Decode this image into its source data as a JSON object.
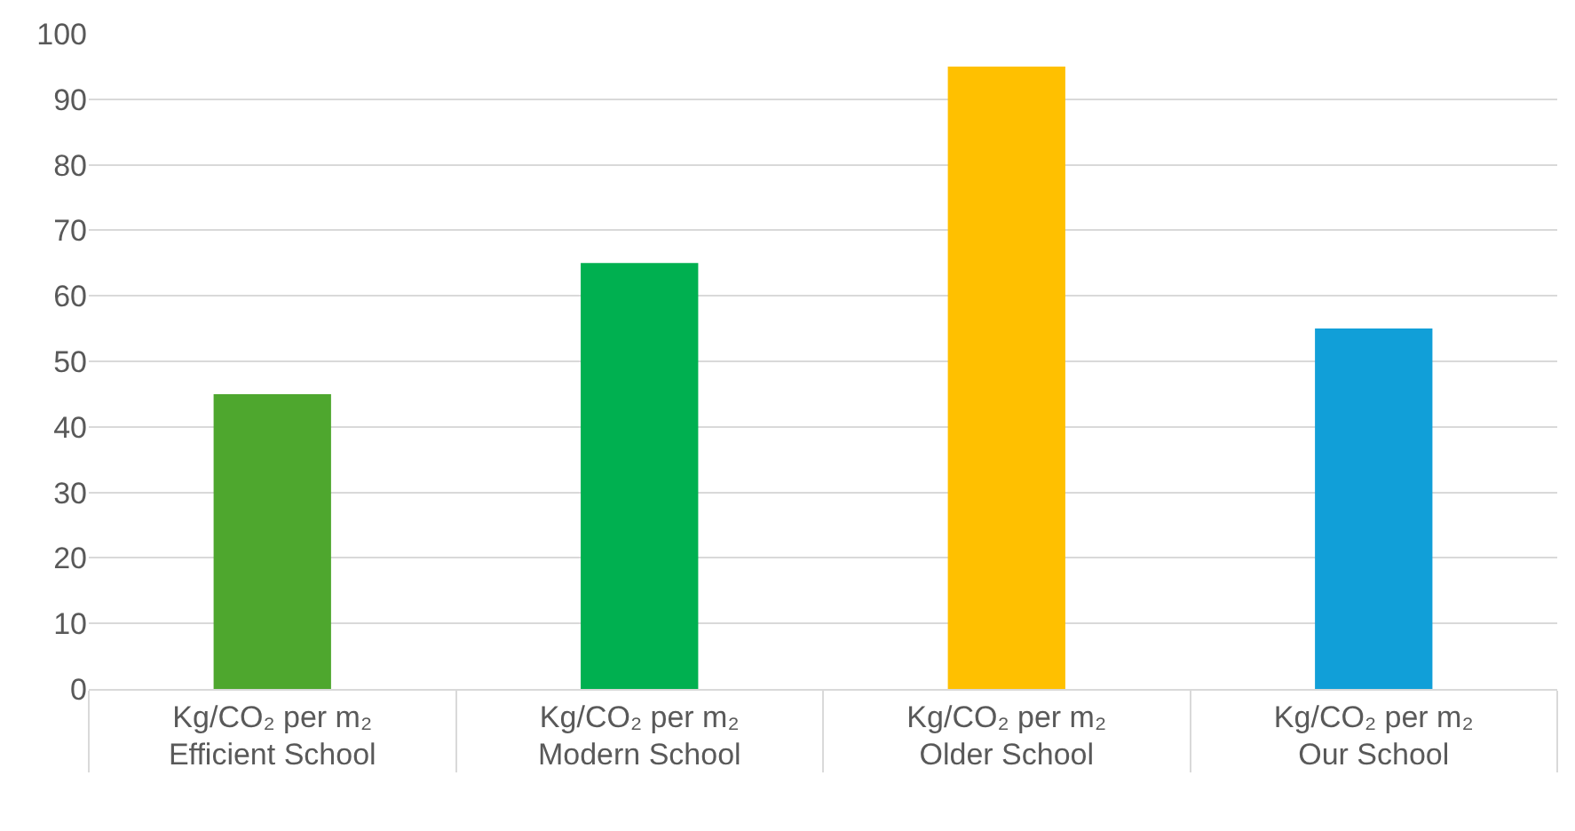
{
  "chart_data": {
    "type": "bar",
    "categories": [
      "Kg/CO₂ per m₂\nEfficient School",
      "Kg/CO₂ per m₂\nModern School",
      "Kg/CO₂ per m₂\nOlder School",
      "Kg/CO₂ per m₂\nOur School"
    ],
    "values": [
      45,
      65,
      95,
      55
    ],
    "colors": [
      "#4ea72e",
      "#00b050",
      "#ffc000",
      "#119fd8"
    ],
    "ylim": [
      0,
      100
    ],
    "yticks": [
      0,
      10,
      20,
      30,
      40,
      50,
      60,
      70,
      80,
      90,
      100
    ],
    "grid": "y"
  }
}
